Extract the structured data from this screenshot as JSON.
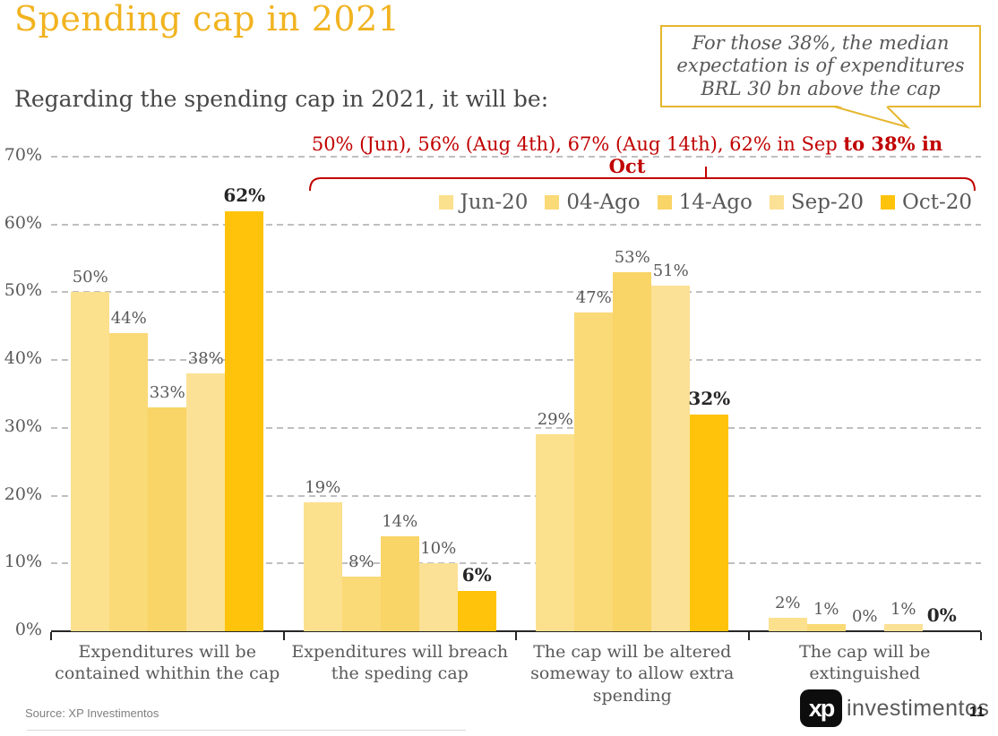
{
  "page": {
    "title": "Spending cap in 2021",
    "title_color": "#F1B31F",
    "subtitle": "Regarding the spending cap in 2021, it will be:",
    "source": "Source: XP Investimentos",
    "page_number": "11",
    "logo_text": "xp",
    "brand_text": "investimentos"
  },
  "callout": {
    "text": "For those 38%, the median expectation is of expenditures BRL 30 bn above the cap",
    "border_color": "#E5B62E",
    "text_color": "#575757"
  },
  "annotation": {
    "text_regular": "50% (Jun), 56% (Aug 4th), 67% (Aug 14th), 62% in Sep ",
    "text_bold": "to 38% in Oct",
    "color": "#C00000"
  },
  "chart_data": {
    "type": "bar",
    "title": "",
    "xlabel": "",
    "ylabel": "",
    "ylim": [
      0,
      70
    ],
    "ytick_step": 10,
    "ytick_suffix": "%",
    "grid": "horizontal-dashed",
    "grid_color": "#BFBFBF",
    "axis_color": "#262626",
    "tick_label_color": "#595959",
    "data_label_color": "#595959",
    "emphasis_label_color": "#262626",
    "legend_position": "top-right",
    "data_label_suffix": "%",
    "categories": [
      "Expenditures will be contained whithin the cap",
      "Expenditures will breach the speding cap",
      "The cap will be altered someway to allow extra spending",
      "The cap will be extinguished"
    ],
    "series": [
      {
        "name": "Jun-20",
        "color": "#FBE08E",
        "values": [
          50,
          19,
          29,
          2
        ]
      },
      {
        "name": "04-Ago",
        "color": "#FAD977",
        "values": [
          44,
          8,
          47,
          1
        ]
      },
      {
        "name": "14-Ago",
        "color": "#F9D466",
        "values": [
          33,
          14,
          53,
          0
        ]
      },
      {
        "name": "Sep-20",
        "color": "#FBE195",
        "values": [
          38,
          10,
          51,
          1
        ]
      },
      {
        "name": "Oct-20",
        "color": "#FFC30B",
        "values": [
          62,
          6,
          32,
          0
        ],
        "emphasis": true
      }
    ]
  }
}
